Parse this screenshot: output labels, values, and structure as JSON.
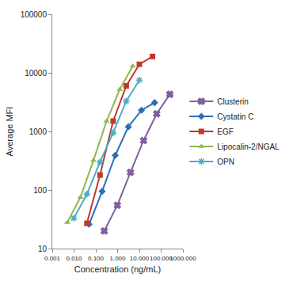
{
  "chart_data": {
    "type": "line",
    "x_label": "Concentration (ng/mL)",
    "y_label": "Average MFI",
    "log": true,
    "grid": false,
    "legend": "right",
    "xlim": [
      0.001,
      1000
    ],
    "ylim": [
      10,
      100000
    ],
    "xticks": [
      0.001,
      {
        "value": 0.01,
        "label": "0.010"
      },
      {
        "value": 0.1,
        "label": "0.100"
      },
      {
        "value": 1,
        "label": "1.000"
      },
      {
        "value": 10,
        "label": "10.000"
      },
      {
        "value": 100,
        "label": "100.000"
      },
      {
        "value": 1000,
        "label": "1000.000"
      }
    ],
    "yticks": [
      10,
      100,
      1000,
      10000,
      100000
    ],
    "series": [
      {
        "name": "Clusterin",
        "color": "#7f5fa0",
        "marker": "x",
        "x": [
          0.244,
          0.977,
          3.9,
          15.6,
          62.5,
          250
        ],
        "values": [
          20,
          55,
          200,
          700,
          2000,
          4300
        ]
      },
      {
        "name": "Cystatin C",
        "color": "#2e6db4",
        "marker": "diamond",
        "x": [
          0.049,
          0.195,
          0.78,
          3.125,
          12.5,
          50
        ],
        "values": [
          26,
          95,
          390,
          1200,
          2300,
          3100
        ]
      },
      {
        "name": "EGF",
        "color": "#c0392b",
        "marker": "square",
        "x": [
          0.039,
          0.156,
          0.625,
          2.5,
          10,
          40
        ],
        "values": [
          27,
          180,
          1500,
          6000,
          14000,
          19000
        ]
      },
      {
        "name": "Lipocalin-2/NGAL",
        "color": "#8fb74e",
        "marker": "triangle-up",
        "x": [
          0.0049,
          0.0195,
          0.078,
          0.3125,
          1.25,
          5
        ],
        "values": [
          28,
          75,
          320,
          1500,
          5200,
          13000
        ]
      },
      {
        "name": "OPN",
        "color": "#4bacc6",
        "marker": "asterisk-open",
        "x": [
          0.0098,
          0.039,
          0.156,
          0.625,
          2.5,
          10
        ],
        "values": [
          33,
          85,
          300,
          950,
          3300,
          7500
        ]
      }
    ]
  }
}
